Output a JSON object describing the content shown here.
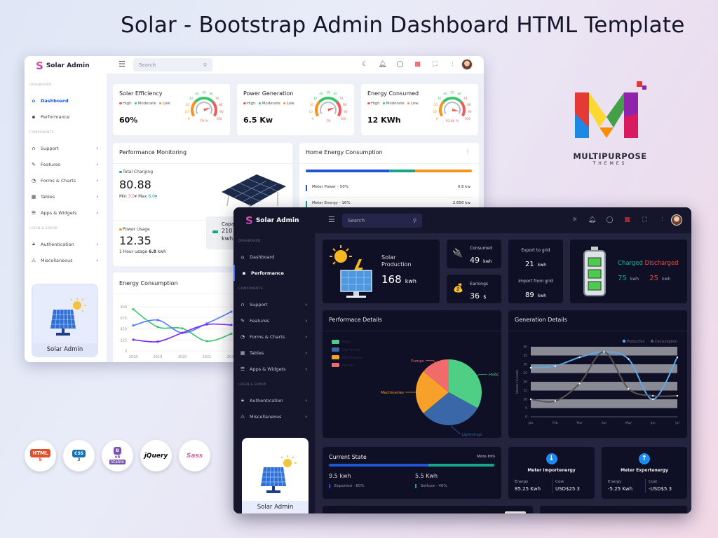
{
  "page_title": "Solar - Bootstrap Admin Dashboard HTML Template",
  "brand": {
    "logo_text": "MULTIPURPOSE",
    "logo_sub": "THEMES"
  },
  "tech_badges": [
    {
      "name": "html5",
      "label": "HTML",
      "sub": "5",
      "color": "#e44d26"
    },
    {
      "name": "css3",
      "label": "CSS",
      "sub": "3",
      "color": "#1572b6"
    },
    {
      "name": "bootstrap",
      "label": "B",
      "sub": "v5",
      "extra": "Stable",
      "color": "#7952b3"
    },
    {
      "name": "jquery",
      "label": "jQuery",
      "color": "#0b0b0b"
    },
    {
      "name": "sass",
      "label": "Sass",
      "color": "#cd6799"
    }
  ],
  "app": {
    "name": "Solar Admin",
    "logo_letter": "S",
    "search_placeholder": "Search",
    "promo_label": "Solar Admin"
  },
  "header_icons": {
    "light": [
      "moon-icon",
      "bell-icon",
      "chat-icon",
      "flag-us-icon",
      "fullscreen-icon",
      "sliders-icon"
    ],
    "dark": [
      "sun-icon",
      "bell-icon",
      "chat-icon",
      "flag-us-icon",
      "fullscreen-icon",
      "sliders-icon"
    ]
  },
  "sidebar": [
    {
      "section": "DASHBOARD"
    },
    {
      "label": "Dashboard",
      "icon": "home-icon"
    },
    {
      "label": "Performance",
      "icon": "square-icon"
    },
    {
      "section": "COMPONENTS"
    },
    {
      "label": "Support",
      "icon": "headset-icon",
      "chevron": true
    },
    {
      "label": "Features",
      "icon": "edit-icon",
      "chevron": true
    },
    {
      "label": "Forms & Charts",
      "icon": "pie-icon",
      "chevron": true
    },
    {
      "label": "Tables",
      "icon": "grid-icon",
      "chevron": true
    },
    {
      "label": "Apps & Widgets",
      "icon": "database-icon",
      "chevron": true
    },
    {
      "section": "LOGIN & ERROR"
    },
    {
      "label": "Authentication",
      "icon": "lock-icon",
      "chevron": true
    },
    {
      "label": "Miscellaneous",
      "icon": "warning-icon",
      "chevron": true
    }
  ],
  "light": {
    "active_item": "Dashboard",
    "gauge_legend": [
      {
        "label": "High",
        "color": "#ef5b5b"
      },
      {
        "label": "Moderate",
        "color": "#3cc46b"
      },
      {
        "label": "Low",
        "color": "#f7931e"
      }
    ],
    "gauge_ticks": [
      "0",
      "10",
      "20",
      "30",
      "40",
      "50",
      "60",
      "70",
      "80",
      "90",
      "100"
    ],
    "gauges": [
      {
        "title": "Solar Efficiency",
        "value": "60%",
        "gauge_value": 79,
        "gauge_label": "79 %"
      },
      {
        "title": "Power Generation",
        "value": "6.5 Kw",
        "gauge_value": 79,
        "gauge_label": "79"
      },
      {
        "title": "Energy Consumed",
        "value": "12 KWh",
        "gauge_value": 91.84,
        "gauge_label": "91.84 %"
      }
    ],
    "performance": {
      "title": "Performance Monitoring",
      "charging_label": "Total Charging",
      "charging_value": "80.88",
      "min_label": "Min",
      "min_value": "3.0",
      "max_label": "Max",
      "max_value": "6.0",
      "usage_label": "Power Usage",
      "usage_value": "12.35",
      "usage_note_prefix": "1 Hour usage",
      "usage_note_value": "6.8",
      "usage_note_unit": "kwh",
      "capacity_label": "Capacity",
      "capacity_value": "210",
      "capacity_unit": "kwh"
    },
    "home_energy": {
      "title": "Home Energy Consumption",
      "bar": [
        {
          "pct": 50,
          "color": "#1e56d6"
        },
        {
          "pct": 16,
          "color": "#14a58a"
        },
        {
          "pct": 34,
          "color": "#f7931e"
        }
      ],
      "rows": [
        {
          "label": "Meter Power - 50%",
          "value": "0.8 kw",
          "color": "#1e56d6"
        },
        {
          "label": "Meter Energy - 16%",
          "value": "2.656 kw",
          "color": "#14a58a"
        }
      ]
    },
    "energy_chart_title": "Energy Consumption"
  },
  "dark": {
    "active_item": "Performance",
    "solar": {
      "label": "Solar Production",
      "value": "168",
      "unit": "kwh"
    },
    "consumed": {
      "label": "Consumed",
      "value": "49",
      "unit": "kwh"
    },
    "earnings": {
      "label": "Earnings",
      "value": "36",
      "unit": "$"
    },
    "export": {
      "label": "Export to grid",
      "value": "21",
      "unit": "kwh"
    },
    "import": {
      "label": "Import from grid",
      "value": "89",
      "unit": "kwh"
    },
    "battery": {
      "charged_label": "Charged",
      "discharged_label": "Discharged",
      "charged_value": "75",
      "charged_unit": "kwh",
      "discharged_value": "25",
      "discharged_unit": "kwh",
      "charged_color": "#14b890",
      "discharged_color": "#f0503c"
    },
    "perf_title": "Performace Details",
    "gen_title": "Generation Details",
    "current": {
      "title": "Current State",
      "more": "More Info",
      "bar": [
        {
          "pct": 60,
          "color": "#1e56d6"
        },
        {
          "pct": 40,
          "color": "#14a58a"
        }
      ],
      "left_value": "9.5 kwh",
      "left_label": "Exported - 60%",
      "right_value": "5.5 Kwh",
      "right_label": "Selfuse - 40%"
    },
    "meters": [
      {
        "title": "Meter Importenergy",
        "icon": "arrow-down-icon",
        "energy_label": "Energy",
        "energy": "85.25 Kwh",
        "cost_label": "Cost",
        "cost": "USD$25.3"
      },
      {
        "title": "Meter Exportenergy",
        "icon": "arrow-up-icon",
        "energy_label": "Energy",
        "energy": "-5.25 Kwh",
        "cost_label": "Cost",
        "cost": "-USD$5.3"
      }
    ]
  },
  "chart_data": [
    {
      "type": "line",
      "title": "Energy Consumption",
      "categories": [
        "2018",
        "2019",
        "2020",
        "2021",
        "2022"
      ],
      "ylim": [
        0,
        900
      ],
      "yticks": [
        "0",
        "225",
        "450",
        "675",
        "900"
      ],
      "series": [
        {
          "values": [
            850,
            490,
            460,
            200,
            350
          ],
          "color": "#3cc46b"
        },
        {
          "values": [
            520,
            630,
            370,
            560,
            800
          ],
          "color": "#4f7cff"
        },
        {
          "values": [
            230,
            190,
            370,
            540,
            530
          ],
          "color": "#7b2cf5"
        }
      ]
    },
    {
      "type": "pie",
      "title": "Performace Details",
      "legend": "top-left",
      "slices": [
        {
          "name": "HVAC",
          "value": 33,
          "color": "#4fcf86"
        },
        {
          "name": "Lightnings",
          "value": 31,
          "color": "#3a67a8"
        },
        {
          "name": "Machineries",
          "value": 22,
          "color": "#f7a02a"
        },
        {
          "name": "Pumps",
          "value": 14,
          "color": "#f26b6b"
        }
      ]
    },
    {
      "type": "line",
      "title": "Generation Details",
      "ylabel": "Values (in kwh)",
      "categories": [
        "Jan",
        "Feb",
        "Mar",
        "Apr",
        "May",
        "Jun",
        "Jul"
      ],
      "ylim": [
        0,
        40
      ],
      "yticks": [
        "0",
        "5",
        "10",
        "15",
        "20",
        "25",
        "30",
        "35",
        "40"
      ],
      "legend": "top-right",
      "series": [
        {
          "name": "Production",
          "values": [
            28,
            29,
            34,
            37,
            33,
            10,
            34
          ],
          "color": "#5aa8e6"
        },
        {
          "name": "Consumption",
          "values": [
            10,
            9,
            19,
            37,
            16,
            12,
            12
          ],
          "color": "#555555"
        }
      ]
    }
  ]
}
